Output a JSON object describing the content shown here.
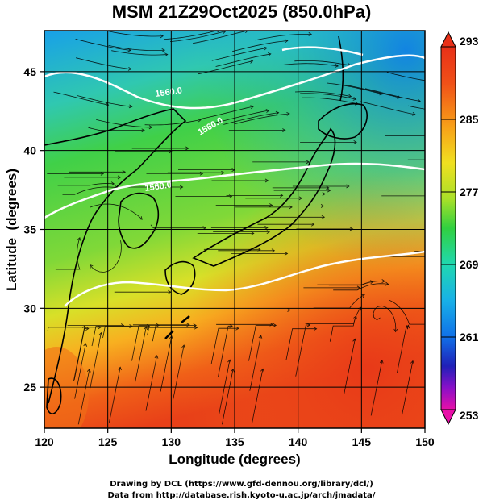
{
  "title": "MSM 21Z29Oct2025 (850.0hPa)",
  "credits": {
    "line1": "Drawing by DCL (https://www.gfd-dennou.org/library/dcl/)",
    "line2": "Data from http://database.rish.kyoto-u.ac.jp/arch/jmadata/"
  },
  "map": {
    "xlabel": "Longitude (degrees)",
    "ylabel": "Latitude  (degrees)",
    "lon_range": [
      120,
      150
    ],
    "lat_range": [
      22.4,
      47.6
    ],
    "lon_ticks": [
      "120",
      "125",
      "130",
      "135",
      "140",
      "145",
      "150"
    ],
    "lat_ticks": [
      "25",
      "30",
      "35",
      "40",
      "45"
    ],
    "contour_labels": [
      "1560.0",
      "1560.0",
      "1560.0"
    ]
  },
  "colorbar": {
    "min": 253,
    "max": 293,
    "labels": [
      "293",
      "285",
      "277",
      "269",
      "261",
      "253"
    ],
    "colors": [
      "#e8109e",
      "#8a10c8",
      "#2020b8",
      "#1070e8",
      "#18b0e8",
      "#20d8b0",
      "#30d040",
      "#a8e028",
      "#f0e020",
      "#f8a018",
      "#f05018",
      "#e83018"
    ]
  }
}
